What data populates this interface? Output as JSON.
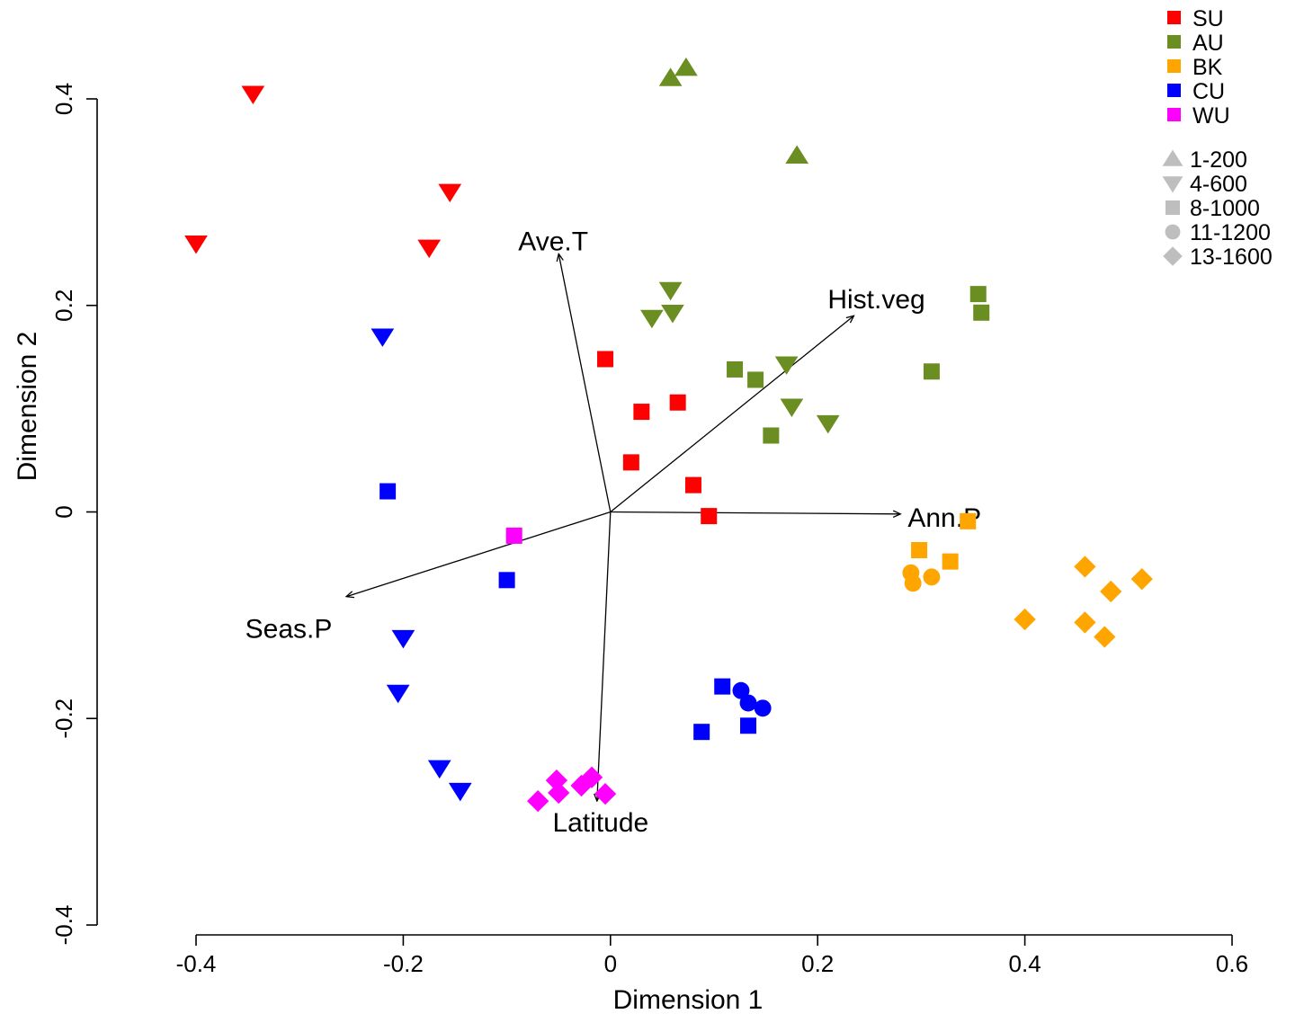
{
  "chart_data": {
    "type": "scatter",
    "xlabel": "Dimension 1",
    "ylabel": "Dimension 2",
    "xlim": [
      -0.4,
      0.6
    ],
    "ylim": [
      -0.4,
      0.4
    ],
    "x_ticks": [
      -0.4,
      -0.2,
      0,
      0.2,
      0.4,
      0.6
    ],
    "y_ticks": [
      -0.4,
      -0.2,
      0,
      0.2,
      0.4
    ],
    "x_tick_labels": [
      "-0.4",
      "-0.2",
      "0",
      "0.2",
      "0.4",
      "0.6"
    ],
    "y_tick_labels": [
      "-0.4",
      "-0.2",
      "0",
      "0.2",
      "0.4"
    ],
    "grid": false,
    "legend_position": "top-right",
    "group_legend": [
      {
        "label": "SU",
        "color": "#ff0000"
      },
      {
        "label": "AU",
        "color": "#6b8e23"
      },
      {
        "label": "BK",
        "color": "#ffa500"
      },
      {
        "label": "CU",
        "color": "#0000ff"
      },
      {
        "label": "WU",
        "color": "#ff00ff"
      }
    ],
    "shape_legend": [
      {
        "label": "1-200",
        "shape": "triangle-up",
        "color": "#bebebe"
      },
      {
        "label": "4-600",
        "shape": "triangle-down",
        "color": "#bebebe"
      },
      {
        "label": "8-1000",
        "shape": "square",
        "color": "#bebebe"
      },
      {
        "label": "11-1200",
        "shape": "circle",
        "color": "#bebebe"
      },
      {
        "label": "13-1600",
        "shape": "diamond",
        "color": "#bebebe"
      }
    ],
    "vectors": [
      {
        "label": "Ave.T",
        "x": -0.05,
        "y": 0.25
      },
      {
        "label": "Hist.veg",
        "x": 0.235,
        "y": 0.19
      },
      {
        "label": "Ann.P",
        "x": 0.28,
        "y": -0.002
      },
      {
        "label": "Seas.P",
        "x": -0.255,
        "y": -0.082
      },
      {
        "label": "Latitude",
        "x": -0.013,
        "y": -0.28
      }
    ],
    "series": [
      {
        "name": "SU",
        "points": [
          {
            "x": -0.345,
            "y": 0.405,
            "shape": "triangle-down"
          },
          {
            "x": -0.4,
            "y": 0.26,
            "shape": "triangle-down"
          },
          {
            "x": -0.155,
            "y": 0.31,
            "shape": "triangle-down"
          },
          {
            "x": -0.175,
            "y": 0.256,
            "shape": "triangle-down"
          },
          {
            "x": -0.005,
            "y": 0.148,
            "shape": "square"
          },
          {
            "x": 0.065,
            "y": 0.106,
            "shape": "square"
          },
          {
            "x": 0.03,
            "y": 0.097,
            "shape": "square"
          },
          {
            "x": 0.02,
            "y": 0.048,
            "shape": "square"
          },
          {
            "x": 0.08,
            "y": 0.026,
            "shape": "square"
          },
          {
            "x": 0.095,
            "y": -0.004,
            "shape": "square"
          }
        ]
      },
      {
        "name": "AU",
        "points": [
          {
            "x": 0.058,
            "y": 0.42,
            "shape": "triangle-up"
          },
          {
            "x": 0.073,
            "y": 0.43,
            "shape": "triangle-up"
          },
          {
            "x": 0.18,
            "y": 0.345,
            "shape": "triangle-up"
          },
          {
            "x": 0.058,
            "y": 0.215,
            "shape": "triangle-down"
          },
          {
            "x": 0.04,
            "y": 0.188,
            "shape": "triangle-down"
          },
          {
            "x": 0.06,
            "y": 0.193,
            "shape": "triangle-down"
          },
          {
            "x": 0.17,
            "y": 0.143,
            "shape": "triangle-down"
          },
          {
            "x": 0.175,
            "y": 0.102,
            "shape": "triangle-down"
          },
          {
            "x": 0.21,
            "y": 0.086,
            "shape": "triangle-down"
          },
          {
            "x": 0.12,
            "y": 0.138,
            "shape": "square"
          },
          {
            "x": 0.14,
            "y": 0.128,
            "shape": "square"
          },
          {
            "x": 0.155,
            "y": 0.074,
            "shape": "square"
          },
          {
            "x": 0.355,
            "y": 0.211,
            "shape": "square"
          },
          {
            "x": 0.358,
            "y": 0.193,
            "shape": "square"
          },
          {
            "x": 0.31,
            "y": 0.136,
            "shape": "square"
          }
        ]
      },
      {
        "name": "BK",
        "points": [
          {
            "x": 0.345,
            "y": -0.009,
            "shape": "square"
          },
          {
            "x": 0.298,
            "y": -0.037,
            "shape": "square"
          },
          {
            "x": 0.328,
            "y": -0.048,
            "shape": "square"
          },
          {
            "x": 0.29,
            "y": -0.059,
            "shape": "circle"
          },
          {
            "x": 0.292,
            "y": -0.069,
            "shape": "circle"
          },
          {
            "x": 0.31,
            "y": -0.063,
            "shape": "circle"
          },
          {
            "x": 0.458,
            "y": -0.053,
            "shape": "diamond"
          },
          {
            "x": 0.513,
            "y": -0.065,
            "shape": "diamond"
          },
          {
            "x": 0.483,
            "y": -0.077,
            "shape": "diamond"
          },
          {
            "x": 0.4,
            "y": -0.104,
            "shape": "diamond"
          },
          {
            "x": 0.458,
            "y": -0.107,
            "shape": "diamond"
          },
          {
            "x": 0.477,
            "y": -0.121,
            "shape": "diamond"
          }
        ]
      },
      {
        "name": "CU",
        "points": [
          {
            "x": -0.22,
            "y": 0.17,
            "shape": "triangle-down"
          },
          {
            "x": -0.2,
            "y": -0.122,
            "shape": "triangle-down"
          },
          {
            "x": -0.205,
            "y": -0.175,
            "shape": "triangle-down"
          },
          {
            "x": -0.165,
            "y": -0.248,
            "shape": "triangle-down"
          },
          {
            "x": -0.145,
            "y": -0.27,
            "shape": "triangle-down"
          },
          {
            "x": -0.215,
            "y": 0.02,
            "shape": "square"
          },
          {
            "x": -0.1,
            "y": -0.066,
            "shape": "square"
          },
          {
            "x": 0.108,
            "y": -0.169,
            "shape": "square"
          },
          {
            "x": 0.088,
            "y": -0.213,
            "shape": "square"
          },
          {
            "x": 0.133,
            "y": -0.207,
            "shape": "square"
          },
          {
            "x": 0.126,
            "y": -0.173,
            "shape": "circle"
          },
          {
            "x": 0.133,
            "y": -0.185,
            "shape": "circle"
          },
          {
            "x": 0.147,
            "y": -0.19,
            "shape": "circle"
          }
        ]
      },
      {
        "name": "WU",
        "points": [
          {
            "x": -0.093,
            "y": -0.023,
            "shape": "square"
          },
          {
            "x": -0.07,
            "y": -0.28,
            "shape": "diamond"
          },
          {
            "x": -0.052,
            "y": -0.26,
            "shape": "diamond"
          },
          {
            "x": -0.05,
            "y": -0.272,
            "shape": "diamond"
          },
          {
            "x": -0.028,
            "y": -0.265,
            "shape": "diamond"
          },
          {
            "x": -0.018,
            "y": -0.257,
            "shape": "diamond"
          },
          {
            "x": -0.005,
            "y": -0.273,
            "shape": "diamond"
          }
        ]
      }
    ]
  }
}
